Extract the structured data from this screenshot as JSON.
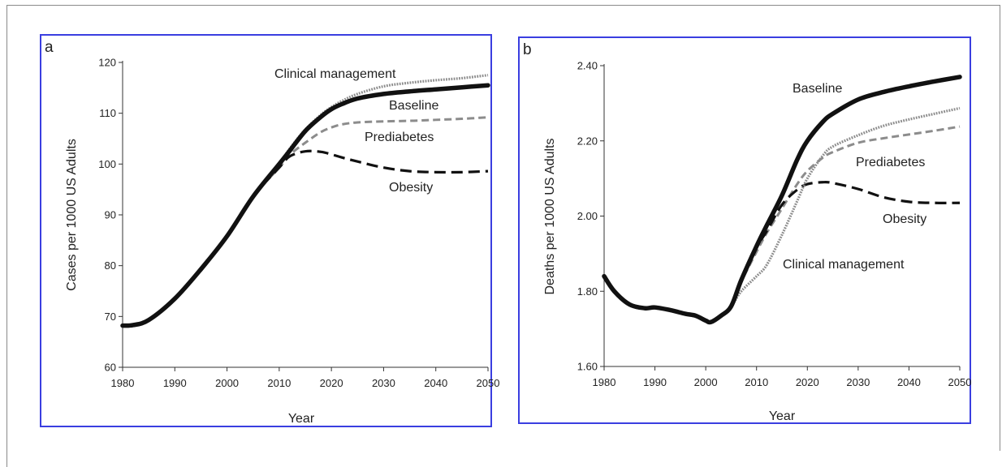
{
  "chart_data": [
    {
      "panel": "a",
      "type": "line",
      "xlabel": "Year",
      "ylabel": "Cases per 1000 US Adults",
      "xlim": [
        1980,
        2050
      ],
      "ylim": [
        60,
        120
      ],
      "xticks": [
        1980,
        1990,
        2000,
        2010,
        2020,
        2030,
        2040,
        2050
      ],
      "yticks": [
        60,
        70,
        80,
        90,
        100,
        110,
        120
      ],
      "x": [
        1980,
        1982,
        1985,
        1990,
        1995,
        2000,
        2005,
        2010,
        2012,
        2015,
        2018,
        2020,
        2022,
        2025,
        2030,
        2035,
        2040,
        2045,
        2050
      ],
      "series": [
        {
          "name": "Clinical management",
          "style": "gray-dotted",
          "color": "#8c8c8c",
          "values": [
            68.2,
            68.3,
            69.3,
            73.5,
            79.3,
            85.8,
            93.6,
            100.0,
            103.0,
            106.8,
            109.7,
            111.2,
            112.4,
            113.8,
            115.3,
            116.0,
            116.5,
            116.9,
            117.5
          ]
        },
        {
          "name": "Baseline",
          "style": "black-thick",
          "color": "#111111",
          "values": [
            68.2,
            68.3,
            69.3,
            73.5,
            79.3,
            85.8,
            93.6,
            100.0,
            102.6,
            106.5,
            109.3,
            110.8,
            111.8,
            112.9,
            113.8,
            114.3,
            114.7,
            115.1,
            115.5
          ]
        },
        {
          "name": "Prediabetes",
          "style": "gray-dashed",
          "color": "#8c8c8c",
          "values": [
            68.2,
            68.3,
            69.3,
            73.5,
            79.3,
            85.8,
            93.6,
            99.3,
            101.8,
            104.2,
            106.3,
            107.2,
            107.8,
            108.2,
            108.4,
            108.5,
            108.7,
            108.9,
            109.2
          ]
        },
        {
          "name": "Obesity",
          "style": "black-dashed",
          "color": "#111111",
          "values": [
            68.2,
            68.3,
            69.3,
            73.5,
            79.3,
            85.8,
            93.6,
            99.3,
            101.5,
            102.5,
            102.4,
            101.9,
            101.3,
            100.5,
            99.3,
            98.6,
            98.4,
            98.4,
            98.6
          ]
        }
      ]
    },
    {
      "panel": "b",
      "type": "line",
      "xlabel": "Year",
      "ylabel": "Deaths per 1000 US Adults",
      "xlim": [
        1980,
        2050
      ],
      "ylim": [
        1.6,
        2.4
      ],
      "xticks": [
        1980,
        1990,
        2000,
        2010,
        2020,
        2030,
        2040,
        2050
      ],
      "yticks": [
        "1.60",
        "1.80",
        "2.00",
        "2.20",
        "2.40"
      ],
      "x": [
        1980,
        1982,
        1985,
        1988,
        1990,
        1993,
        1996,
        1998,
        2000,
        2001,
        2003,
        2005,
        2007,
        2010,
        2012,
        2015,
        2018,
        2020,
        2023,
        2025,
        2030,
        2035,
        2040,
        2045,
        2050
      ],
      "series": [
        {
          "name": "Baseline",
          "style": "black-thick",
          "color": "#111111",
          "values": [
            1.84,
            1.8,
            1.765,
            1.755,
            1.757,
            1.75,
            1.74,
            1.735,
            1.722,
            1.718,
            1.735,
            1.76,
            1.83,
            1.92,
            1.975,
            2.055,
            2.15,
            2.2,
            2.25,
            2.272,
            2.31,
            2.33,
            2.345,
            2.358,
            2.37
          ]
        },
        {
          "name": "Prediabetes",
          "style": "gray-dashed",
          "color": "#8c8c8c",
          "values": [
            1.84,
            1.8,
            1.765,
            1.755,
            1.757,
            1.75,
            1.74,
            1.735,
            1.722,
            1.718,
            1.735,
            1.76,
            1.825,
            1.905,
            1.955,
            2.02,
            2.085,
            2.12,
            2.155,
            2.17,
            2.195,
            2.207,
            2.217,
            2.227,
            2.238
          ]
        },
        {
          "name": "Obesity",
          "style": "black-dashed",
          "color": "#111111",
          "values": [
            1.84,
            1.8,
            1.765,
            1.755,
            1.757,
            1.75,
            1.74,
            1.735,
            1.722,
            1.718,
            1.735,
            1.76,
            1.825,
            1.915,
            1.96,
            2.03,
            2.07,
            2.085,
            2.09,
            2.088,
            2.072,
            2.05,
            2.038,
            2.035,
            2.035
          ]
        },
        {
          "name": "Clinical management",
          "style": "gray-dotted",
          "color": "#8c8c8c",
          "values": [
            1.84,
            1.8,
            1.765,
            1.755,
            1.757,
            1.75,
            1.74,
            1.735,
            1.722,
            1.718,
            1.735,
            1.76,
            1.8,
            1.84,
            1.87,
            1.95,
            2.04,
            2.1,
            2.16,
            2.185,
            2.215,
            2.24,
            2.257,
            2.272,
            2.287
          ]
        }
      ]
    }
  ]
}
